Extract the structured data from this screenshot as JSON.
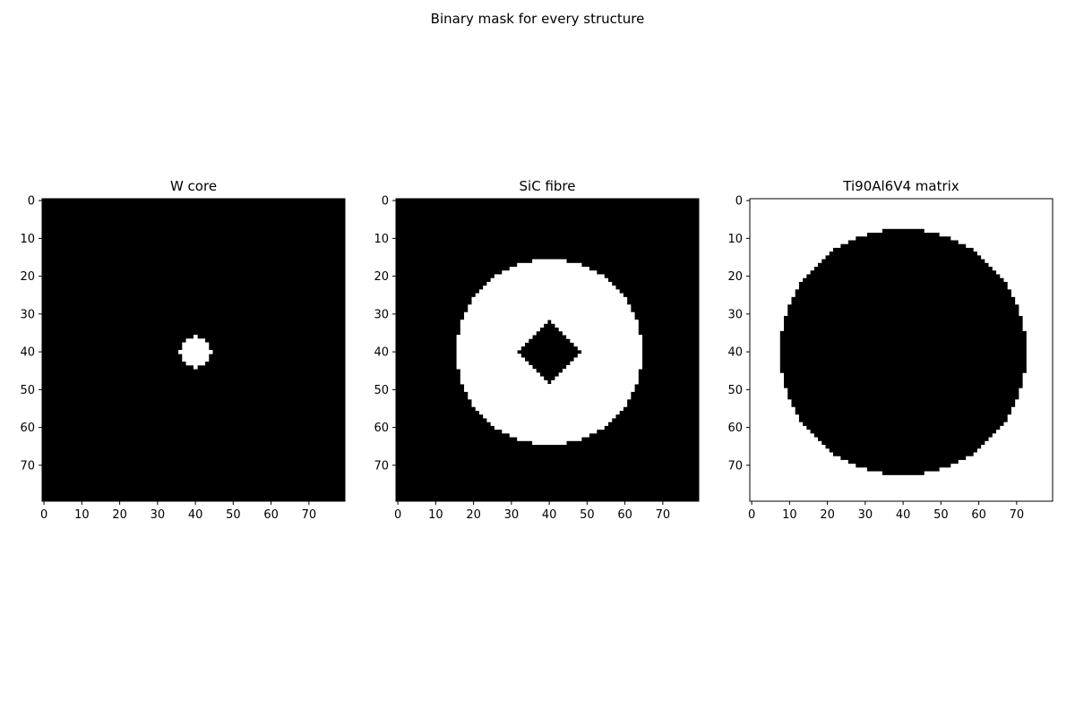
{
  "figure": {
    "title": "Binary mask for every structure"
  },
  "chart_data": [
    {
      "type": "heatmap",
      "title": "W core",
      "grid_shape": [
        80,
        80
      ],
      "colormap": "gray",
      "shape": {
        "kind": "disk",
        "center": [
          40,
          40
        ],
        "radius": 4
      },
      "inside_value": 1,
      "outside_value": 0,
      "x_ticks": [
        "0",
        "10",
        "20",
        "30",
        "40",
        "50",
        "60",
        "70"
      ],
      "y_ticks": [
        "0",
        "10",
        "20",
        "30",
        "40",
        "50",
        "60",
        "70"
      ]
    },
    {
      "type": "heatmap",
      "title": "SiC fibre",
      "grid_shape": [
        80,
        80
      ],
      "colormap": "gray",
      "shape": {
        "kind": "annulus",
        "center": [
          40,
          40
        ],
        "inner_radius": 8.5,
        "outer_radius": 24.5,
        "inner_metric": "diamond"
      },
      "inside_value": 1,
      "outside_value": 0,
      "x_ticks": [
        "0",
        "10",
        "20",
        "30",
        "40",
        "50",
        "60",
        "70"
      ],
      "y_ticks": [
        "0",
        "10",
        "20",
        "30",
        "40",
        "50",
        "60",
        "70"
      ]
    },
    {
      "type": "heatmap",
      "title": "Ti90Al6V4 matrix",
      "grid_shape": [
        80,
        80
      ],
      "colormap": "gray",
      "shape": {
        "kind": "disk",
        "center": [
          40,
          40
        ],
        "radius": 32.5
      },
      "inside_value": 0,
      "outside_value": 1,
      "x_ticks": [
        "0",
        "10",
        "20",
        "30",
        "40",
        "50",
        "60",
        "70"
      ],
      "y_ticks": [
        "0",
        "10",
        "20",
        "30",
        "40",
        "50",
        "60",
        "70"
      ]
    }
  ]
}
